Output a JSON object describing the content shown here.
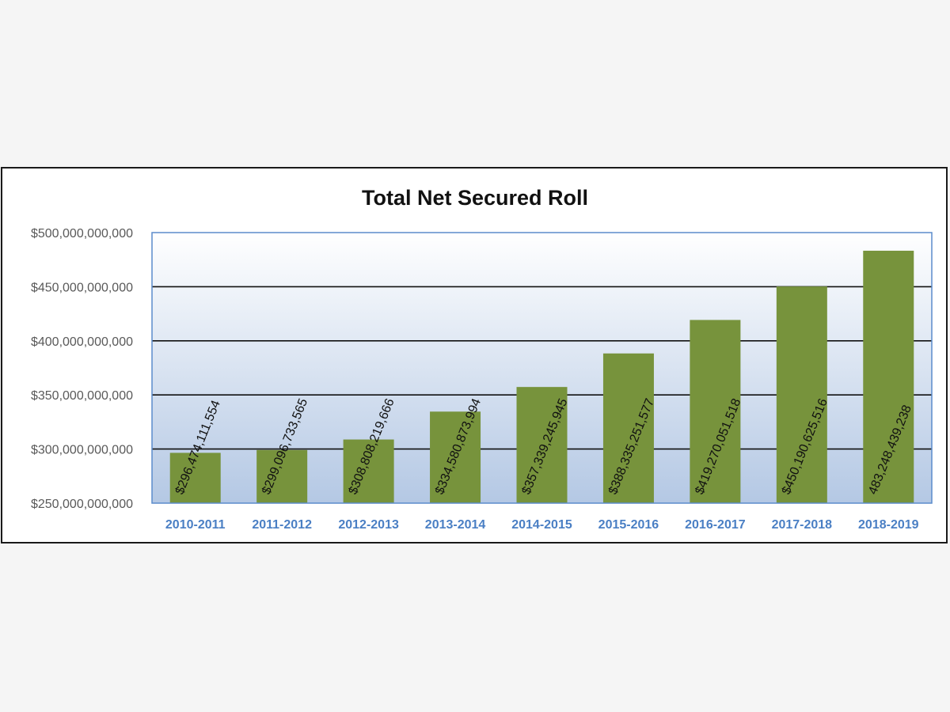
{
  "chart_data": {
    "type": "bar",
    "title": "Total Net Secured Roll",
    "xlabel": "",
    "ylabel": "",
    "categories": [
      "2010-2011",
      "2011-2012",
      "2012-2013",
      "2013-2014",
      "2014-2015",
      "2015-2016",
      "2016-2017",
      "2017-2018",
      "2018-2019"
    ],
    "values": [
      296474111554,
      299096733565,
      308808219666,
      334580873994,
      357339245945,
      388335251577,
      419270051518,
      450190625516,
      483248439238
    ],
    "data_labels": [
      "$296,474,111,554",
      "$299,096,733,565",
      "$308,808,219,666",
      "$334,580,873,994",
      "$357,339,245,945",
      "$388,335,251,577",
      "$419,270,051,518",
      "$450,190,625,516",
      "483,248,439,238"
    ],
    "ylim": [
      250000000000,
      500000000000
    ],
    "yticks": [
      250000000000,
      300000000000,
      350000000000,
      400000000000,
      450000000000,
      500000000000
    ],
    "ytick_labels": [
      "$250,000,000,000",
      "$300,000,000,000",
      "$350,000,000,000",
      "$400,000,000,000",
      "$450,000,000,000",
      "$500,000,000,000"
    ],
    "grid": true,
    "legend": "none",
    "colors": {
      "bar": "#77933c",
      "plot_bg_top": "#ffffff",
      "plot_bg_bottom": "#b4c8e4",
      "plot_border": "#5b8ccc",
      "gridline": "#111111",
      "category_label": "#4a7fc4"
    }
  }
}
